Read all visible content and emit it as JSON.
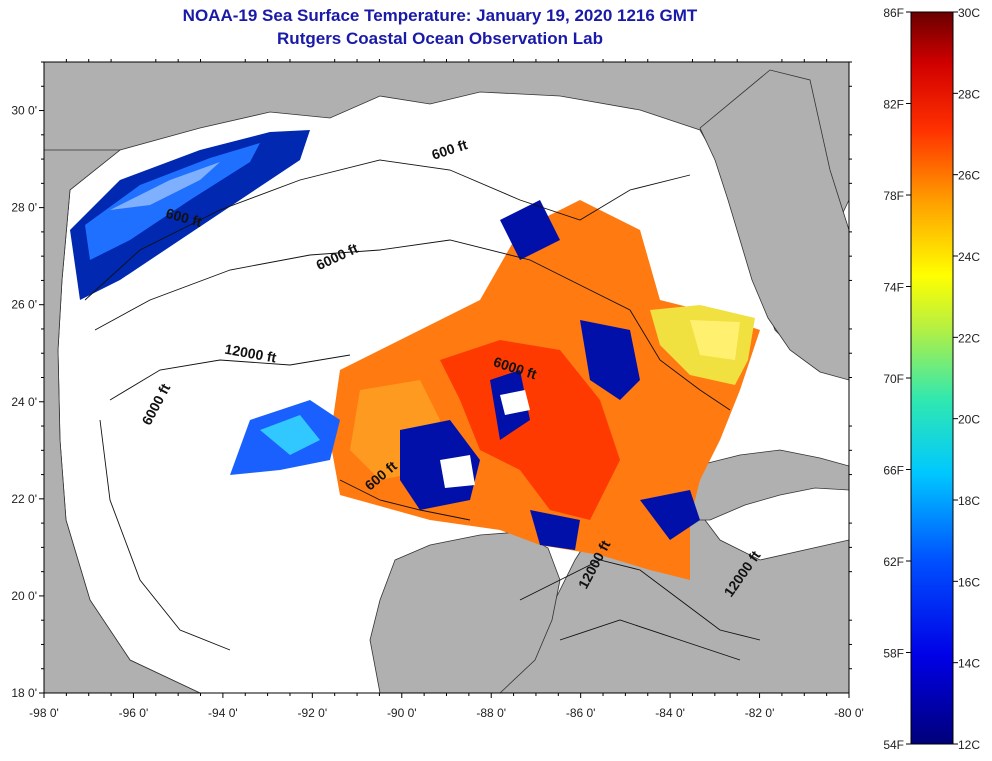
{
  "title": {
    "line1": "NOAA-19 Sea Surface Temperature:  January 19, 2020 1216 GMT",
    "line2": "Rutgers Coastal Ocean Observation Lab"
  },
  "map": {
    "lon_range": [
      -98,
      -80
    ],
    "lat_range": [
      18,
      31
    ],
    "lon_ticks": [
      "-98 0'",
      "-96 0'",
      "-94 0'",
      "-92 0'",
      "-90 0'",
      "-88 0'",
      "-86 0'",
      "-84 0'",
      "-82 0'",
      "-80 0'"
    ],
    "lat_ticks": [
      "18 0'",
      "20 0'",
      "22 0'",
      "24 0'",
      "26 0'",
      "28 0'",
      "30 0'"
    ],
    "land_color": "#b0b0b0",
    "no_data_color": "#ffffff",
    "contour_labels": [
      {
        "text": "600 ft",
        "lon": -88.9,
        "lat": 29.1,
        "angle": -18
      },
      {
        "text": "600 ft",
        "lon": -94.9,
        "lat": 27.7,
        "angle": 15
      },
      {
        "text": "6000 ft",
        "lon": -91.4,
        "lat": 26.9,
        "angle": -25
      },
      {
        "text": "12000 ft",
        "lon": -93.4,
        "lat": 24.9,
        "angle": 10
      },
      {
        "text": "6000 ft",
        "lon": -95.4,
        "lat": 23.9,
        "angle": -62
      },
      {
        "text": "6000 ft",
        "lon": -87.5,
        "lat": 24.6,
        "angle": 18
      },
      {
        "text": "600 ft",
        "lon": -90.4,
        "lat": 22.4,
        "angle": -40
      },
      {
        "text": "12000 ft",
        "lon": -85.6,
        "lat": 20.6,
        "angle": -62
      },
      {
        "text": "12000 ft",
        "lon": -82.3,
        "lat": 20.4,
        "angle": -55
      }
    ]
  },
  "colorbar": {
    "f_labels": [
      "86F",
      "82F",
      "78F",
      "74F",
      "70F",
      "66F",
      "62F",
      "58F",
      "54F"
    ],
    "c_labels": [
      "30C",
      "28C",
      "26C",
      "24C",
      "22C",
      "20C",
      "18C",
      "16C",
      "14C",
      "12C"
    ]
  }
}
